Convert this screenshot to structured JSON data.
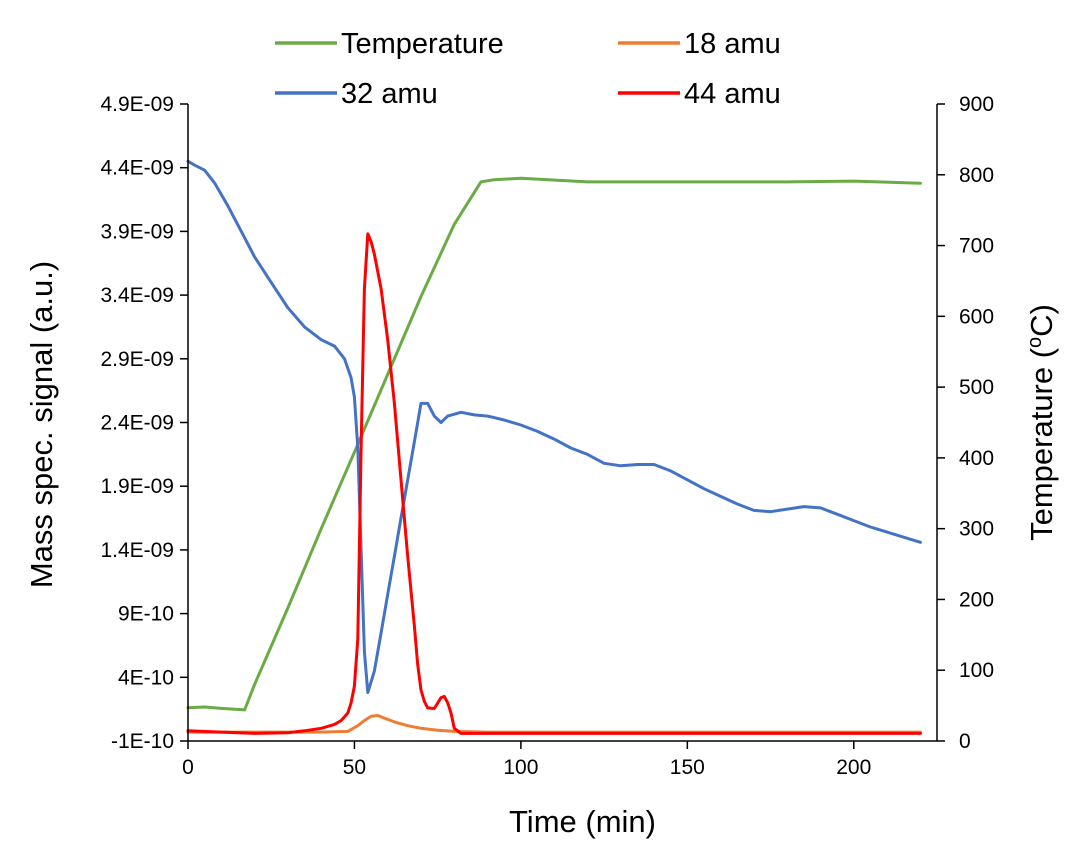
{
  "chart_data": {
    "type": "line",
    "title": "",
    "xlabel": "Time (min)",
    "ylabel": "Mass spec. signal (a.u.)",
    "y2label": "Temperature (°C)",
    "y2label_parts": {
      "main": "Temperature (",
      "sup": "o",
      "tail": "C)"
    },
    "xlim": [
      0,
      225
    ],
    "ylim": [
      -1e-10,
      4.9e-09
    ],
    "y2lim": [
      0,
      900
    ],
    "grid": false,
    "legend_position": "top",
    "x_ticks": [
      "0",
      "50",
      "100",
      "150",
      "200"
    ],
    "x_tick_values": [
      0,
      50,
      100,
      150,
      200
    ],
    "y_ticks": [
      "-1E-10",
      "4E-10",
      "9E-10",
      "1.4E-09",
      "1.9E-09",
      "2.4E-09",
      "2.9E-09",
      "3.4E-09",
      "3.9E-09",
      "4.4E-09",
      "4.9E-09"
    ],
    "y_tick_values": [
      -1e-10,
      4e-10,
      9e-10,
      1.4e-09,
      1.9e-09,
      2.4e-09,
      2.9e-09,
      3.4e-09,
      3.9e-09,
      4.4e-09,
      4.9e-09
    ],
    "y2_ticks": [
      "0",
      "100",
      "200",
      "300",
      "400",
      "500",
      "600",
      "700",
      "800",
      "900"
    ],
    "y2_tick_values": [
      0,
      100,
      200,
      300,
      400,
      500,
      600,
      700,
      800,
      900
    ],
    "series": [
      {
        "name": "Temperature",
        "axis": "y2",
        "color": "#6aab46",
        "x": [
          0,
          5,
          10,
          17,
          20,
          30,
          40,
          50,
          60,
          70,
          80,
          88,
          92,
          100,
          120,
          150,
          180,
          200,
          220
        ],
        "y": [
          47,
          48,
          46,
          44,
          80,
          188,
          300,
          408,
          518,
          628,
          730,
          790,
          793,
          795,
          790,
          790,
          790,
          791,
          788
        ]
      },
      {
        "name": "18 amu",
        "axis": "y",
        "color": "#ed7d31",
        "x": [
          0,
          10,
          20,
          30,
          40,
          48,
          51,
          53,
          55,
          57,
          59,
          62,
          66,
          70,
          75,
          80,
          90,
          100,
          150,
          220
        ],
        "y": [
          -3e-11,
          -3e-11,
          -3e-11,
          -3e-11,
          -3e-11,
          -2.5e-11,
          2e-11,
          6e-11,
          9.5e-11,
          1e-10,
          8e-11,
          5e-11,
          2e-11,
          0,
          -1.5e-11,
          -2.5e-11,
          -3e-11,
          -3e-11,
          -3e-11,
          -3e-11
        ]
      },
      {
        "name": "32 amu",
        "axis": "y",
        "color": "#4472c4",
        "x": [
          0,
          2,
          5,
          8,
          12,
          16,
          20,
          25,
          30,
          35,
          40,
          44,
          47,
          49,
          50,
          51,
          52,
          53,
          54,
          56,
          58,
          60,
          62,
          64,
          66,
          68,
          70,
          72,
          74,
          76,
          78,
          82,
          86,
          90,
          95,
          100,
          105,
          110,
          115,
          120,
          125,
          130,
          135,
          140,
          145,
          150,
          155,
          160,
          165,
          170,
          175,
          180,
          185,
          190,
          195,
          200,
          205,
          210,
          215,
          220
        ],
        "y": [
          4.45e-09,
          4.42e-09,
          4.38e-09,
          4.28e-09,
          4.1e-09,
          3.9e-09,
          3.7e-09,
          3.5e-09,
          3.3e-09,
          3.15e-09,
          3.05e-09,
          3e-09,
          2.9e-09,
          2.75e-09,
          2.6e-09,
          2.2e-09,
          1.4e-09,
          6e-10,
          2.8e-10,
          4.5e-10,
          7.5e-10,
          1.05e-09,
          1.35e-09,
          1.65e-09,
          1.95e-09,
          2.25e-09,
          2.55e-09,
          2.55e-09,
          2.45e-09,
          2.4e-09,
          2.45e-09,
          2.48e-09,
          2.46e-09,
          2.45e-09,
          2.42e-09,
          2.38e-09,
          2.33e-09,
          2.27e-09,
          2.2e-09,
          2.15e-09,
          2.08e-09,
          2.06e-09,
          2.07e-09,
          2.07e-09,
          2.02e-09,
          1.95e-09,
          1.88e-09,
          1.82e-09,
          1.76e-09,
          1.71e-09,
          1.7e-09,
          1.72e-09,
          1.74e-09,
          1.73e-09,
          1.68e-09,
          1.63e-09,
          1.58e-09,
          1.54e-09,
          1.5e-09,
          1.46e-09
        ]
      },
      {
        "name": "44 amu",
        "axis": "y",
        "color": "#ff0000",
        "x": [
          0,
          10,
          20,
          30,
          35,
          40,
          44,
          46,
          48,
          49,
          50,
          51,
          52,
          53,
          54,
          55,
          56,
          58,
          60,
          62,
          64,
          66,
          68,
          69,
          70,
          71,
          72,
          74,
          76,
          77,
          78,
          79,
          80,
          82,
          90,
          100,
          150,
          220
        ],
        "y": [
          -2e-11,
          -3e-11,
          -4e-11,
          -3.5e-11,
          -2e-11,
          0,
          3e-11,
          6e-11,
          1.2e-10,
          2e-10,
          3.3e-10,
          7e-10,
          2.2e-09,
          3.45e-09,
          3.88e-09,
          3.82e-09,
          3.72e-09,
          3.45e-09,
          3.05e-09,
          2.55e-09,
          1.95e-09,
          1.35e-09,
          8e-10,
          5e-10,
          3e-10,
          2.1e-10,
          1.6e-10,
          1.55e-10,
          2.4e-10,
          2.5e-10,
          2e-10,
          1.2e-10,
          0,
          -4e-11,
          -4e-11,
          -4e-11,
          -4e-11,
          -4e-11
        ]
      }
    ],
    "legend": [
      {
        "name": "Temperature",
        "color": "#6aab46"
      },
      {
        "name": "18 amu",
        "color": "#ed7d31"
      },
      {
        "name": "32 amu",
        "color": "#4472c4"
      },
      {
        "name": "44 amu",
        "color": "#ff0000"
      }
    ]
  }
}
